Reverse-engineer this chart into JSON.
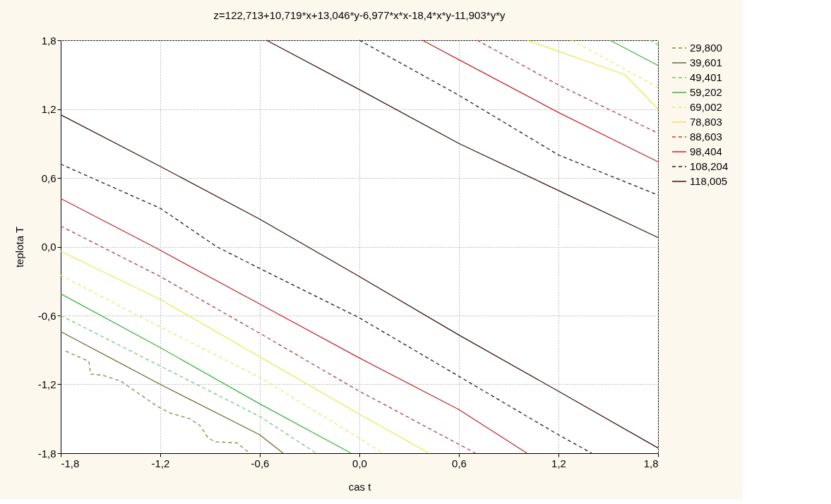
{
  "chart_data": {
    "type": "line",
    "title": "z=122,713+10,719*x+13,046*y-6,977*x*x-18,4*x*y-11,903*y*y",
    "xlabel": "cas t",
    "ylabel": "teplota T",
    "xlim": [
      -1.8,
      1.8
    ],
    "ylim": [
      -1.8,
      1.8
    ],
    "xticks": [
      {
        "value": -1.8,
        "label": "-1,8"
      },
      {
        "value": -1.2,
        "label": "-1,2"
      },
      {
        "value": -0.6,
        "label": "-0,6"
      },
      {
        "value": 0,
        "label": "0,0"
      },
      {
        "value": 0.6,
        "label": "0,6"
      },
      {
        "value": 1.2,
        "label": "1,2"
      },
      {
        "value": 1.8,
        "label": "1,8"
      }
    ],
    "yticks": [
      {
        "value": -1.8,
        "label": "-1,8"
      },
      {
        "value": -1.2,
        "label": "-1,2"
      },
      {
        "value": -0.6,
        "label": "-0,6"
      },
      {
        "value": 0,
        "label": "0,0"
      },
      {
        "value": 0.6,
        "label": "0,6"
      },
      {
        "value": 1.2,
        "label": "1,2"
      },
      {
        "value": 1.8,
        "label": "1,8"
      }
    ],
    "grid": true,
    "legend": "right",
    "marker": "none",
    "series": [
      {
        "name": "29,800",
        "color": "#8a8640",
        "line_style": "dashed",
        "x": [
          -1.77,
          -1.63,
          -1.62,
          -1.55,
          -1.44,
          -1.29,
          -1.22,
          -1.14,
          -1.02,
          -0.96,
          -0.91,
          -0.87,
          -0.74,
          -0.66
        ],
        "values": [
          -0.91,
          -1.0,
          -1.11,
          -1.12,
          -1.17,
          -1.32,
          -1.39,
          -1.45,
          -1.5,
          -1.56,
          -1.67,
          -1.7,
          -1.71,
          -1.8
        ]
      },
      {
        "name": "39,601",
        "color": "#6e6a30",
        "line_style": "solid",
        "x": [
          -1.8,
          -1.2,
          -0.6,
          -0.46
        ],
        "values": [
          -0.74,
          -1.2,
          -1.64,
          -1.8
        ]
      },
      {
        "name": "49,401",
        "color": "#70c870",
        "line_style": "dashed",
        "x": [
          -1.8,
          -1.2,
          -0.6,
          -0.26
        ],
        "values": [
          -0.6,
          -1.04,
          -1.48,
          -1.8
        ]
      },
      {
        "name": "59,202",
        "color": "#3cb43c",
        "line_style": "solid",
        "x": [
          -1.8,
          -1.2,
          -0.6,
          -0.05
        ],
        "values": [
          -0.41,
          -0.88,
          -1.37,
          -1.8
        ]
      },
      {
        "name": "69,002",
        "color": "#e6e67a",
        "line_style": "dashed",
        "x": [
          -1.8,
          -1.2,
          -0.6,
          0,
          0.14
        ],
        "values": [
          -0.25,
          -0.7,
          -1.14,
          -1.67,
          -1.8
        ]
      },
      {
        "name": "78,803",
        "color": "#e8e84a",
        "line_style": "solid",
        "x": [
          -1.8,
          -1.2,
          -0.6,
          0,
          0.42
        ],
        "values": [
          -0.04,
          -0.46,
          -0.96,
          -1.46,
          -1.8
        ]
      },
      {
        "name": "88,603",
        "color": "#b04040",
        "line_style": "dashed",
        "x": [
          -1.8,
          -1.2,
          -0.6,
          0,
          0.7
        ],
        "values": [
          0.18,
          -0.26,
          -0.755,
          -1.26,
          -1.8
        ]
      },
      {
        "name": "98,404",
        "color": "#c0282d",
        "line_style": "solid",
        "x": [
          -1.8,
          -1.24,
          -0.6,
          0,
          0.6,
          1.01
        ],
        "values": [
          0.42,
          0,
          -0.5,
          -0.97,
          -1.42,
          -1.8
        ]
      },
      {
        "name": "108,204",
        "color": "#202020",
        "line_style": "dashed",
        "x": [
          -1.8,
          -1.2,
          -0.86,
          -0.6,
          0,
          0.6,
          1.2,
          1.4
        ],
        "values": [
          0.72,
          0.335,
          0,
          -0.19,
          -0.62,
          -1.13,
          -1.64,
          -1.8
        ]
      },
      {
        "name": "118,005",
        "color": "#3a1414",
        "line_style": "solid",
        "x": [
          -1.8,
          -1.2,
          -0.6,
          0,
          0.6,
          1.2,
          1.8
        ],
        "values": [
          1.15,
          0.7,
          0.24,
          -0.26,
          -0.77,
          -1.26,
          -1.755
        ]
      },
      {
        "color": "#70c870",
        "line_style": "dashed",
        "x": [
          1.75,
          1.8
        ],
        "values": [
          1.8,
          1.76
        ]
      },
      {
        "color": "#3cb43c",
        "line_style": "solid",
        "x": [
          1.51,
          1.8
        ],
        "values": [
          1.8,
          1.58
        ]
      },
      {
        "color": "#e6e67a",
        "line_style": "dashed",
        "x": [
          1.28,
          1.8
        ],
        "values": [
          1.8,
          1.39
        ]
      },
      {
        "color": "#e8e84a",
        "line_style": "solid",
        "x": [
          1.01,
          1.6,
          1.8
        ],
        "values": [
          1.8,
          1.5,
          1.2
        ]
      },
      {
        "color": "#b04040",
        "line_style": "dashed",
        "x": [
          0.71,
          1.2,
          1.8
        ],
        "values": [
          1.8,
          1.41,
          0.99
        ]
      },
      {
        "color": "#c0282d",
        "line_style": "solid",
        "x": [
          0.38,
          0.6,
          1.2,
          1.8
        ],
        "values": [
          1.8,
          1.63,
          1.17,
          0.74
        ]
      },
      {
        "color": "#202020",
        "line_style": "dashed",
        "x": [
          0,
          0.6,
          1.2,
          1.8
        ],
        "values": [
          1.8,
          1.32,
          0.8,
          0.45
        ]
      },
      {
        "color": "#3a1414",
        "line_style": "solid",
        "x": [
          -0.56,
          0,
          0.6,
          1.2,
          1.8
        ],
        "values": [
          1.8,
          1.37,
          0.9,
          0.49,
          0.08
        ]
      }
    ]
  }
}
